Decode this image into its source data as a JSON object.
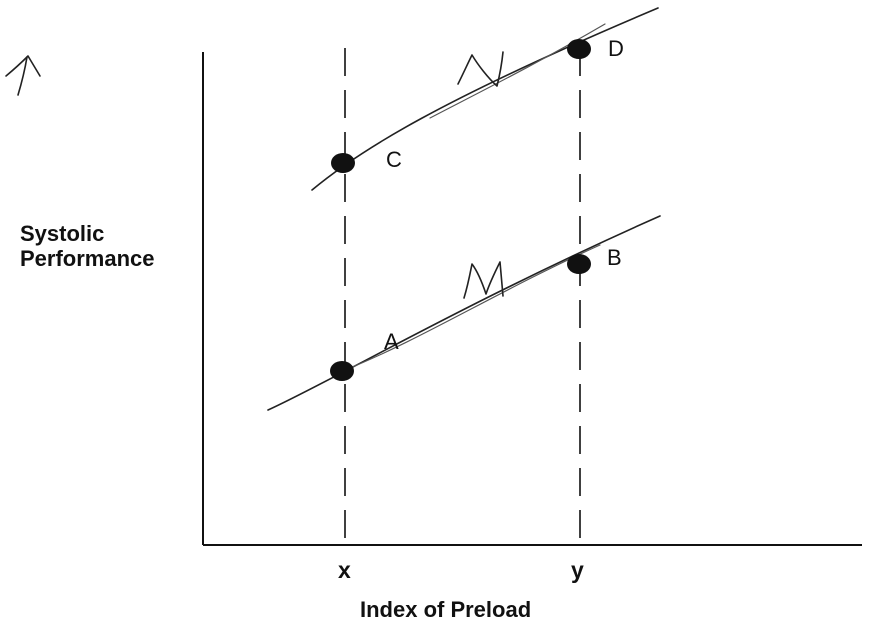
{
  "axes": {
    "y_title_lines": [
      "Systolic",
      "Performance"
    ],
    "x_title": "Index of Preload",
    "x_ticks": [
      "x",
      "y"
    ]
  },
  "points": [
    {
      "id": "A",
      "label": "A",
      "curve": "M",
      "preload": "x"
    },
    {
      "id": "B",
      "label": "B",
      "curve": "M",
      "preload": "y"
    },
    {
      "id": "C",
      "label": "C",
      "curve": "N",
      "preload": "x"
    },
    {
      "id": "D",
      "label": "D",
      "curve": "N",
      "preload": "y"
    }
  ],
  "handwritten": {
    "curve_labels": [
      "M",
      "N"
    ],
    "arrow": "up-arrow"
  }
}
